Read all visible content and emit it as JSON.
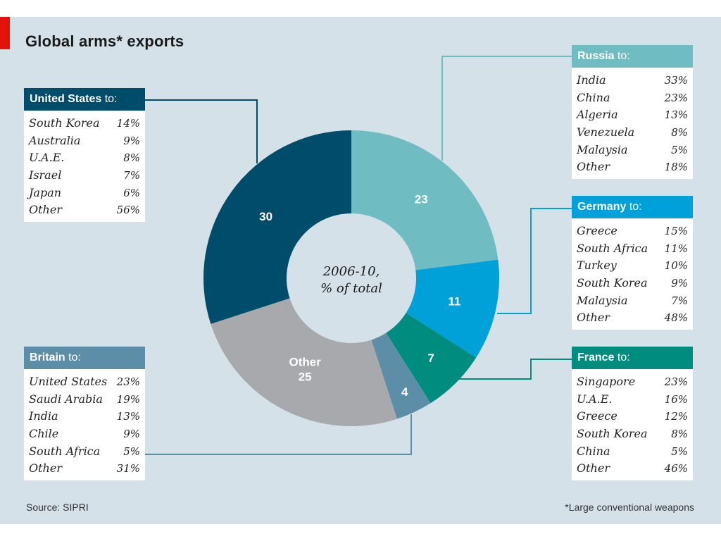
{
  "title": "Global arms* exports",
  "source": "Source: SIPRI",
  "footnote": "*Large conventional weapons",
  "chart_data": {
    "type": "pie",
    "title": "Global arms* exports",
    "center_label": [
      "2006-10,",
      "% of total"
    ],
    "slices": [
      {
        "name": "Russia",
        "value": 23,
        "label": "23",
        "color": "#6fbcc2"
      },
      {
        "name": "Germany",
        "value": 11,
        "label": "11",
        "color": "#00a1d9"
      },
      {
        "name": "France",
        "value": 7,
        "label": "7",
        "color": "#008d7f"
      },
      {
        "name": "Britain",
        "value": 4,
        "label": "4",
        "color": "#5c8fa7"
      },
      {
        "name": "Other",
        "value": 25,
        "label": "Other\n25",
        "color": "#a7a9ac"
      },
      {
        "name": "United States",
        "value": 30,
        "label": "30",
        "color": "#004c6b"
      }
    ],
    "breakdowns": [
      {
        "country": "United States",
        "suffix": "to:",
        "header_color": "#004c6b",
        "rows": [
          [
            "South Korea",
            "14%"
          ],
          [
            "Australia",
            "9%"
          ],
          [
            "U.A.E.",
            "8%"
          ],
          [
            "Israel",
            "7%"
          ],
          [
            "Japan",
            "6%"
          ],
          [
            "Other",
            "56%"
          ]
        ]
      },
      {
        "country": "Russia",
        "suffix": "to:",
        "header_color": "#6fbcc2",
        "rows": [
          [
            "India",
            "33%"
          ],
          [
            "China",
            "23%"
          ],
          [
            "Algeria",
            "13%"
          ],
          [
            "Venezuela",
            "8%"
          ],
          [
            "Malaysia",
            "5%"
          ],
          [
            "Other",
            "18%"
          ]
        ]
      },
      {
        "country": "Germany",
        "suffix": "to:",
        "header_color": "#00a1d9",
        "rows": [
          [
            "Greece",
            "15%"
          ],
          [
            "South Africa",
            "11%"
          ],
          [
            "Turkey",
            "10%"
          ],
          [
            "South Korea",
            "9%"
          ],
          [
            "Malaysia",
            "7%"
          ],
          [
            "Other",
            "48%"
          ]
        ]
      },
      {
        "country": "France",
        "suffix": "to:",
        "header_color": "#008d7f",
        "rows": [
          [
            "Singapore",
            "23%"
          ],
          [
            "U.A.E.",
            "16%"
          ],
          [
            "Greece",
            "12%"
          ],
          [
            "South Korea",
            "8%"
          ],
          [
            "China",
            "5%"
          ],
          [
            "Other",
            "46%"
          ]
        ]
      },
      {
        "country": "Britain",
        "suffix": "to:",
        "header_color": "#5c8fa7",
        "rows": [
          [
            "United States",
            "23%"
          ],
          [
            "Saudi Arabia",
            "19%"
          ],
          [
            "India",
            "13%"
          ],
          [
            "Chile",
            "9%"
          ],
          [
            "South Africa",
            "5%"
          ],
          [
            "Other",
            "31%"
          ]
        ]
      }
    ]
  }
}
